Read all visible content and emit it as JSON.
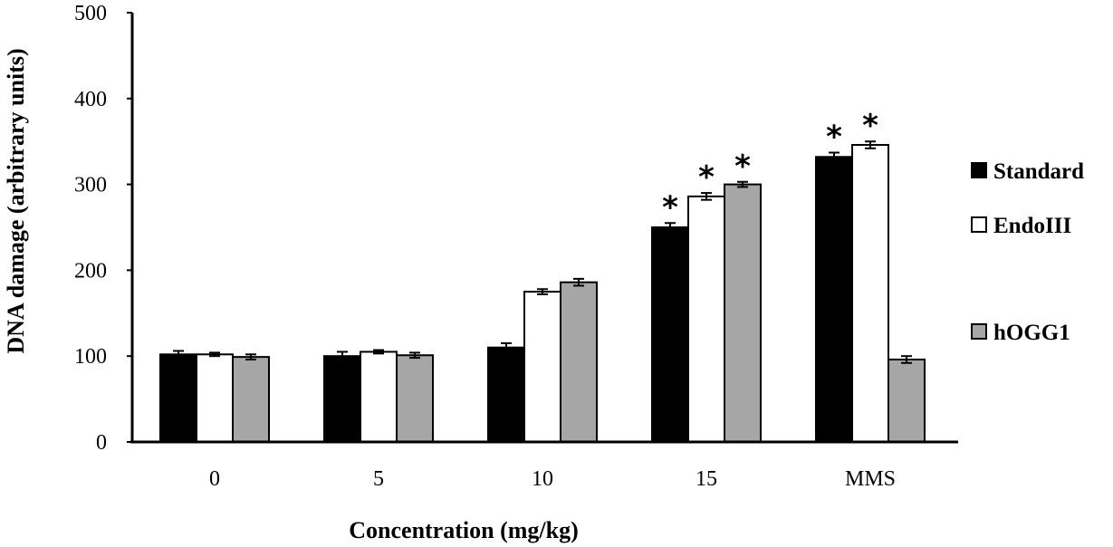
{
  "chart_data": {
    "type": "bar",
    "title": "",
    "xlabel": "Concentration (mg/kg)",
    "ylabel": "DNA damage (arbitrary  units)",
    "ylim": [
      0,
      500
    ],
    "yticks": [
      0,
      100,
      200,
      300,
      400,
      500
    ],
    "ytick_labels": [
      "0",
      "100",
      "200",
      "300",
      "400",
      "500"
    ],
    "grid": false,
    "legend_position": "right",
    "categories": [
      "0",
      "5",
      "10",
      "15",
      "MMS"
    ],
    "series": [
      {
        "name": "Standard",
        "color": "#000000",
        "values": [
          102,
          100,
          110,
          250,
          332
        ],
        "errors": [
          4,
          5,
          5,
          5,
          5
        ],
        "significant": [
          false,
          false,
          false,
          true,
          true
        ]
      },
      {
        "name": "EndoIII",
        "color": "#ffffff",
        "values": [
          102,
          105,
          175,
          286,
          346
        ],
        "errors": [
          2,
          2,
          3,
          4,
          4
        ],
        "significant": [
          false,
          false,
          false,
          true,
          true
        ]
      },
      {
        "name": "hOGG1",
        "color": "#a6a6a6",
        "values": [
          99,
          101,
          186,
          300,
          96
        ],
        "errors": [
          3,
          3,
          4,
          3,
          4
        ],
        "significant": [
          false,
          false,
          false,
          true,
          false
        ]
      }
    ],
    "significance_marker": "*"
  }
}
